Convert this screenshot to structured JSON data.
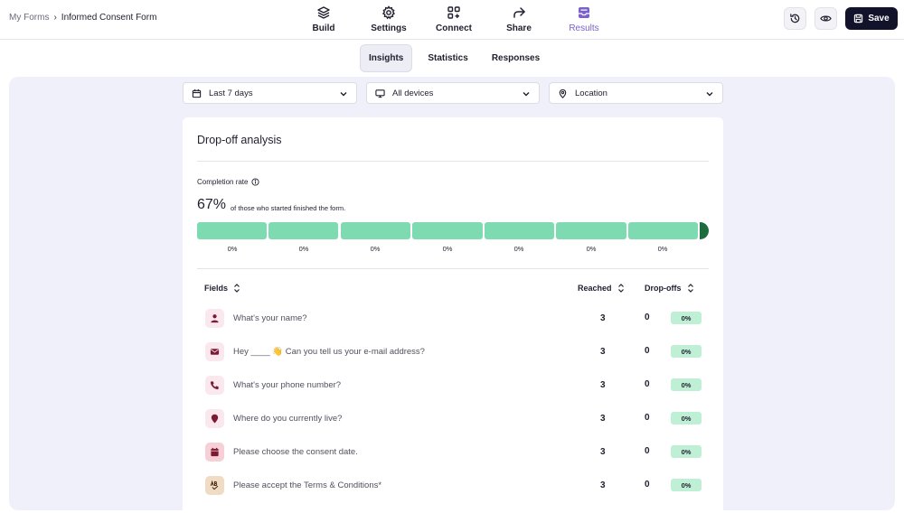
{
  "breadcrumb": {
    "root": "My Forms",
    "separator": "›",
    "current": "Informed Consent Form"
  },
  "nav": [
    {
      "label": "Build",
      "icon": "layers-icon"
    },
    {
      "label": "Settings",
      "icon": "gear-icon"
    },
    {
      "label": "Connect",
      "icon": "apps-add-icon"
    },
    {
      "label": "Share",
      "icon": "share-arrow-icon"
    },
    {
      "label": "Results",
      "icon": "inbox-icon",
      "active": true
    }
  ],
  "toolbar": {
    "save_label": "Save",
    "history_icon": "history-icon",
    "preview_icon": "eye-icon"
  },
  "tabs": [
    {
      "label": "Insights",
      "active": true
    },
    {
      "label": "Statistics"
    },
    {
      "label": "Responses"
    }
  ],
  "filters": {
    "date": "Last 7 days",
    "device": "All devices",
    "location": "Location"
  },
  "dropoff": {
    "title": "Drop-off analysis",
    "completion_label": "Completion rate",
    "completion_value": "67%",
    "completion_desc": "of those who started finished the form.",
    "segments": [
      "0%",
      "0%",
      "0%",
      "0%",
      "0%",
      "0%",
      "0%"
    ]
  },
  "table": {
    "col_fields": "Fields",
    "col_reached": "Reached",
    "col_dropoffs": "Drop-offs",
    "rows": [
      {
        "question": "What's your name?",
        "icon": "person-icon",
        "reached": "3",
        "dropoffs": "0",
        "pct": "0%"
      },
      {
        "question": "Hey ____ 👋 Can you tell us your e-mail address?",
        "icon": "mail-icon",
        "reached": "3",
        "dropoffs": "0",
        "pct": "0%"
      },
      {
        "question": "What's your phone number?",
        "icon": "phone-icon",
        "reached": "3",
        "dropoffs": "0",
        "pct": "0%"
      },
      {
        "question": "Where do you currently live?",
        "icon": "location-pin-icon",
        "reached": "3",
        "dropoffs": "0",
        "pct": "0%"
      },
      {
        "question": "Please choose the consent date.",
        "icon": "calendar-icon",
        "reached": "3",
        "dropoffs": "0",
        "pct": "0%"
      },
      {
        "question": "Please accept the Terms & Conditions*",
        "icon": "terms-icon",
        "reached": "3",
        "dropoffs": "0",
        "pct": "0%"
      }
    ]
  },
  "colors": {
    "accent": "#7b61c9",
    "bar": "#7edbb1",
    "bar_end": "#1e6b3e",
    "save_bg": "#12122a",
    "main_bg": "#f0f0fa"
  }
}
